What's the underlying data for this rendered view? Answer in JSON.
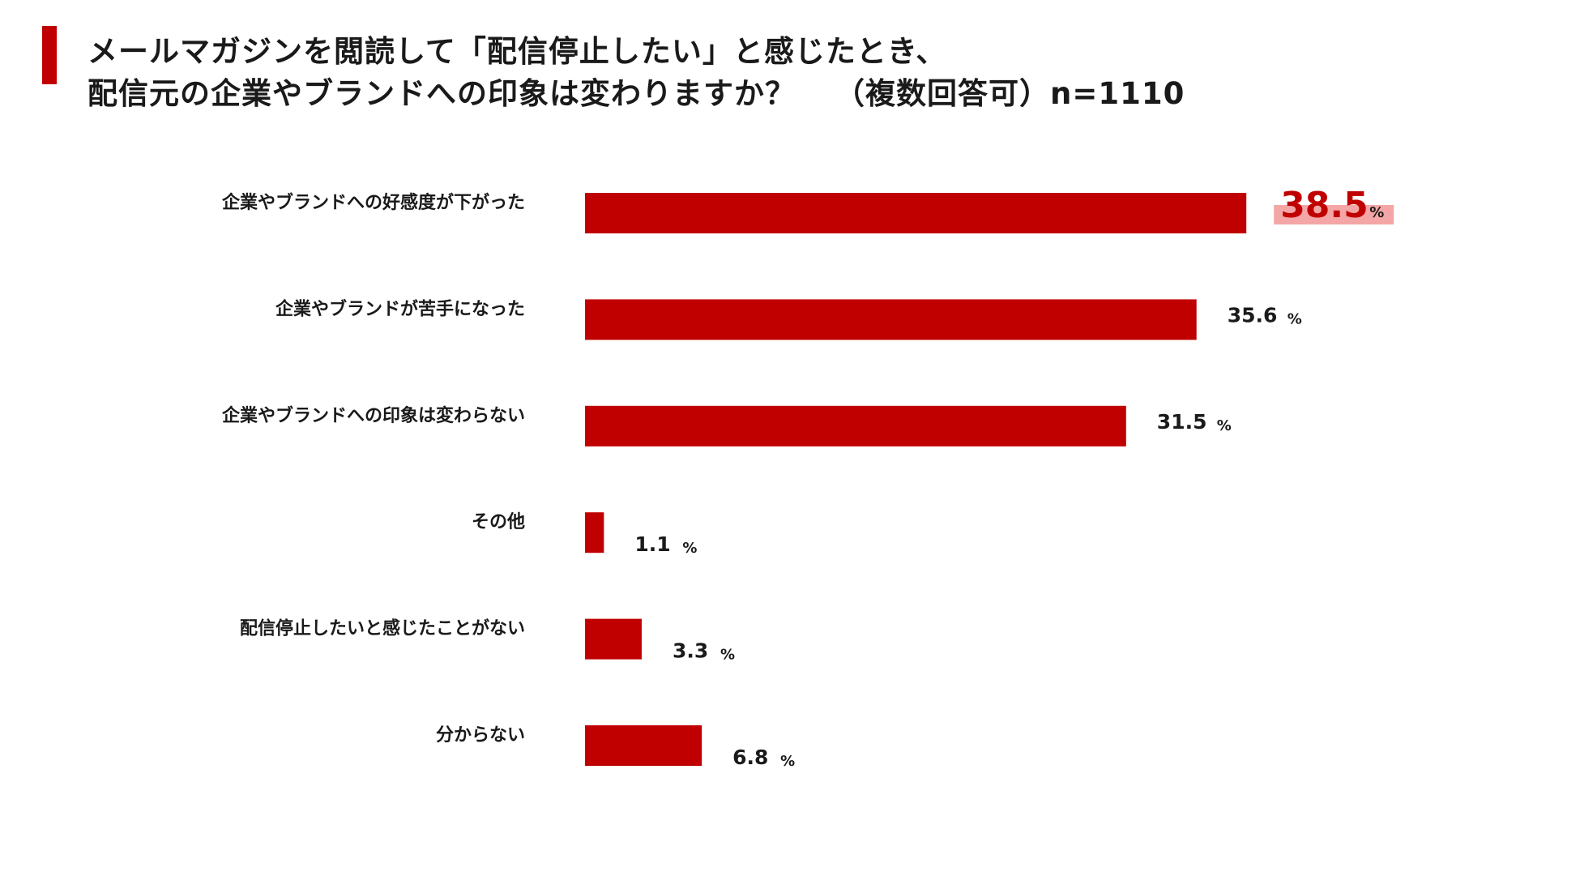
{
  "title": {
    "line1": "メールマガジンを閲読して「配信停止したい」と感じたとき、",
    "line2": "配信元の企業やブランドへの印象は変わりますか？",
    "note": "（複数回答可）n=1110"
  },
  "colors": {
    "bar": "#c00000",
    "highlight_text": "#c00000",
    "highlight_marker": "#f4a6a6",
    "text": "#1a1a1a"
  },
  "chart_data": {
    "type": "bar",
    "orientation": "horizontal",
    "categories": [
      "企業やブランドへの好感度が下がった",
      "企業やブランドが苦手になった",
      "企業やブランドへの印象は変わらない",
      "その他",
      "配信停止したいと感じたことがない",
      "分からない"
    ],
    "values": [
      38.5,
      35.6,
      31.5,
      1.1,
      3.3,
      6.8
    ],
    "value_labels": [
      "38.5",
      "35.6",
      "31.5",
      "1.1",
      "3.3",
      "6.8"
    ],
    "unit": "%",
    "highlight_index": 0,
    "xlim": [
      0,
      50
    ]
  }
}
